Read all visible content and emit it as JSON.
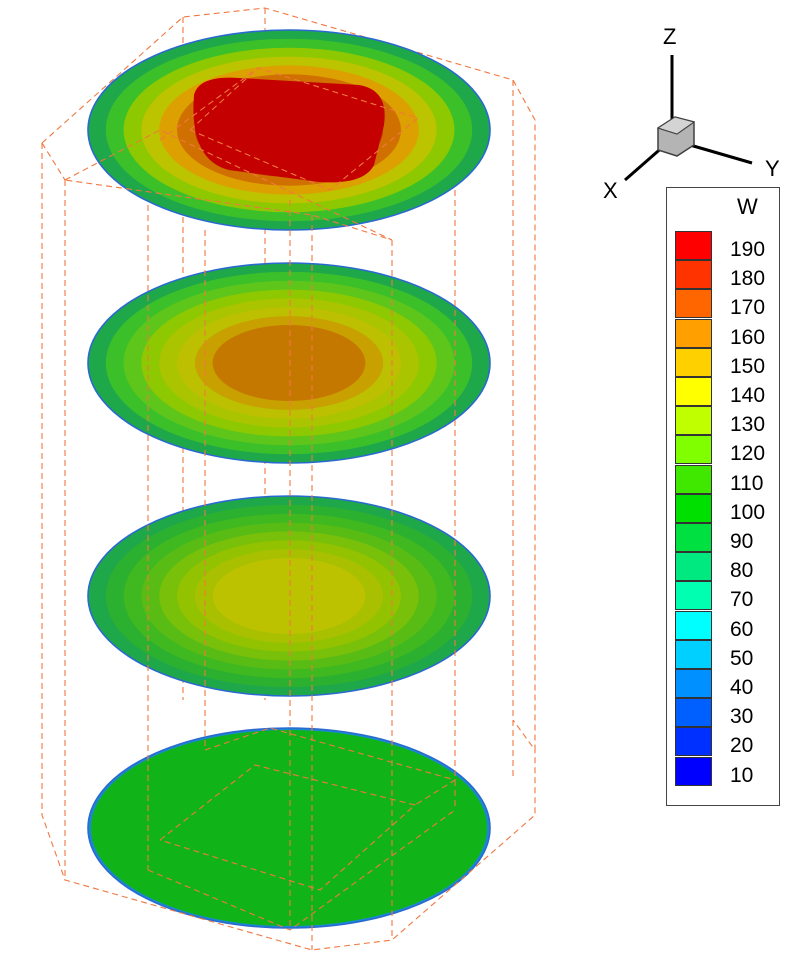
{
  "axes": {
    "z_label": "Z",
    "y_label": "Y",
    "x_label": "X"
  },
  "legend": {
    "title": "W",
    "levels": [
      {
        "value": "190",
        "color": "#ff0000"
      },
      {
        "value": "180",
        "color": "#ff3300"
      },
      {
        "value": "170",
        "color": "#ff6600"
      },
      {
        "value": "160",
        "color": "#ffa000"
      },
      {
        "value": "150",
        "color": "#ffd000"
      },
      {
        "value": "140",
        "color": "#ffff00"
      },
      {
        "value": "130",
        "color": "#c0ff00"
      },
      {
        "value": "120",
        "color": "#80ff00"
      },
      {
        "value": "110",
        "color": "#40e800"
      },
      {
        "value": "100",
        "color": "#00e000"
      },
      {
        "value": "90",
        "color": "#00e040"
      },
      {
        "value": "80",
        "color": "#00e880"
      },
      {
        "value": "70",
        "color": "#00ffb0"
      },
      {
        "value": "60",
        "color": "#00ffff"
      },
      {
        "value": "50",
        "color": "#00d0ff"
      },
      {
        "value": "40",
        "color": "#0090ff"
      },
      {
        "value": "30",
        "color": "#0060ff"
      },
      {
        "value": "20",
        "color": "#0030ff"
      },
      {
        "value": "10",
        "color": "#0000ff"
      }
    ]
  },
  "slices": [
    {
      "name": "slice-top",
      "rings": [
        "#1fa84a",
        "#3cc02a",
        "#8ec800",
        "#bcc400",
        "#dca000",
        "#d07000",
        "#c83800",
        "#c40000"
      ]
    },
    {
      "name": "slice-upper-middle",
      "rings": [
        "#1fa84a",
        "#3cc02a",
        "#5ec61a",
        "#8ec800",
        "#aac400",
        "#bcc000",
        "#c8a000",
        "#c47800"
      ]
    },
    {
      "name": "slice-lower-middle",
      "rings": [
        "#1fa84a",
        "#2cb030",
        "#40b820",
        "#58bc14",
        "#78c00a",
        "#92c200",
        "#a8c000",
        "#bcc200"
      ]
    },
    {
      "name": "slice-bottom",
      "rings": [
        "#1a8ad0",
        "#10b418"
      ]
    }
  ],
  "colors": {
    "frame": "#f07840",
    "cube_face": "#b4b4b4",
    "cube_edge": "#404040"
  }
}
